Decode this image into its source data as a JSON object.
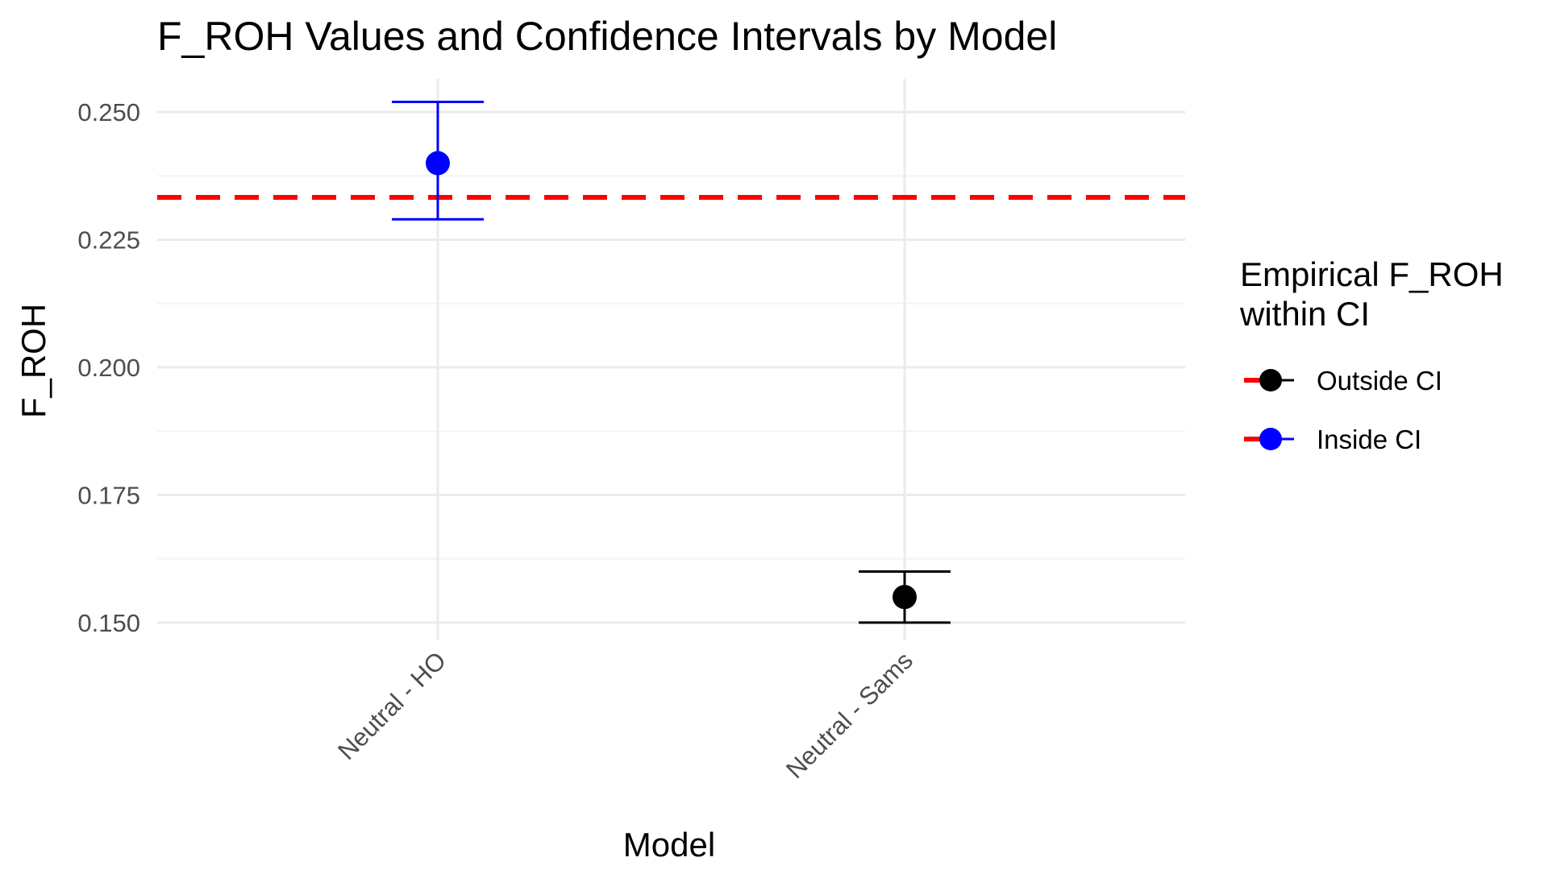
{
  "chart_data": {
    "type": "scatter",
    "title": "F_ROH Values and Confidence Intervals by Model",
    "xlabel": "Model",
    "ylabel": "F_ROH",
    "ylim": [
      0.1465,
      0.2565
    ],
    "grid": true,
    "categories": [
      "Neutral - HO",
      "Neutral - Sams"
    ],
    "y_ticks": [
      0.15,
      0.175,
      0.2,
      0.225,
      0.25
    ],
    "y_tick_labels": [
      "0.150",
      "0.175",
      "0.200",
      "0.225",
      "0.250"
    ],
    "points": [
      {
        "model": "Neutral - HO",
        "value": 0.24,
        "ci_low": 0.229,
        "ci_high": 0.252,
        "group": "Inside CI"
      },
      {
        "model": "Neutral - Sams",
        "value": 0.155,
        "ci_low": 0.15,
        "ci_high": 0.16,
        "group": "Outside CI"
      }
    ],
    "reference_line": {
      "value": 0.2333,
      "style": "dashed",
      "color": "#ff0000"
    },
    "legend": {
      "title_lines": [
        "Empirical F_ROH",
        "within CI"
      ],
      "placement": "right",
      "entries": [
        {
          "label": "Outside CI",
          "color": "#000000"
        },
        {
          "label": "Inside CI",
          "color": "#0000ff"
        }
      ]
    },
    "colors": {
      "Inside CI": "#0000ff",
      "Outside CI": "#000000",
      "reference": "#ff0000",
      "grid": "#ebebeb",
      "tick_text": "#4d4d4d"
    }
  }
}
